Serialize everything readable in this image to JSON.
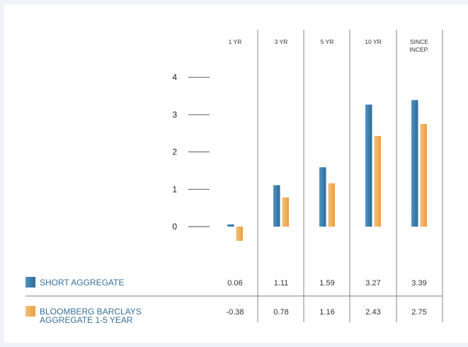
{
  "chart_data": {
    "type": "bar",
    "categories": [
      "1 YR",
      "3 YR",
      "5 YR",
      "10 YR",
      "SINCE INCEP."
    ],
    "category_lines": [
      [
        "1 YR"
      ],
      [
        "3 YR"
      ],
      [
        "5 YR"
      ],
      [
        "10 YR"
      ],
      [
        "SINCE",
        "INCEP."
      ]
    ],
    "series": [
      {
        "name": "SHORT AGGREGATE",
        "name_lines": [
          "SHORT AGGREGATE"
        ],
        "color": "#3f7fae",
        "values": [
          0.06,
          1.11,
          1.59,
          3.27,
          3.39
        ],
        "labels": [
          "0.06",
          "1.11",
          "1.59",
          "3.27",
          "3.39"
        ]
      },
      {
        "name": "BLOOMBERG BARCLAYS AGGREGATE 1-5 YEAR",
        "name_lines": [
          "BLOOMBERG BARCLAYS",
          "AGGREGATE 1-5 YEAR"
        ],
        "color": "#f0ad5a",
        "values": [
          -0.38,
          0.78,
          1.16,
          2.43,
          2.75
        ],
        "labels": [
          "-0.38",
          "0.78",
          "1.16",
          "2.43",
          "2.75"
        ]
      }
    ],
    "yticks": [
      "0",
      "1",
      "2",
      "3",
      "4"
    ],
    "ylim": [
      -0.4,
      4
    ],
    "legend": "bottom-left"
  }
}
